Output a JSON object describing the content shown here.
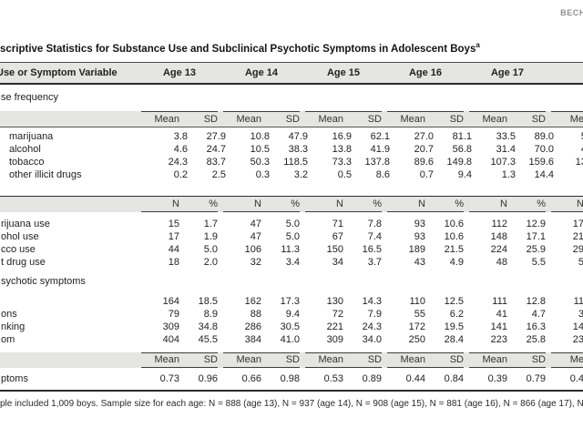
{
  "running_head": "BECH",
  "title": {
    "text": "scriptive Statistics for Substance Use and Subclinical Psychotic Symptoms in Adolescent Boys",
    "superscript": "a"
  },
  "header": {
    "stub": "Use or Symptom Variable",
    "ages": [
      "Age 13",
      "Age 14",
      "Age 15",
      "Age 16",
      "Age 17"
    ]
  },
  "rows": [
    {
      "type": "section",
      "label": "se frequency",
      "cls": ""
    },
    {
      "type": "band",
      "label": "",
      "cls": "seg-top line-bottom",
      "values": [
        "Mean",
        "SD",
        "Mean",
        "SD",
        "Mean",
        "SD",
        "Mean",
        "SD",
        "Mean",
        "SD"
      ],
      "partial": "Me"
    },
    {
      "type": "data",
      "label": "marijuana",
      "cls": "mt3 ind10",
      "values": [
        "3.8",
        "27.9",
        "10.8",
        "47.9",
        "16.9",
        "62.1",
        "27.0",
        "81.1",
        "33.5",
        "89.0"
      ],
      "partial": "51"
    },
    {
      "type": "data",
      "label": "alcohol",
      "cls": "ind10",
      "values": [
        "4.6",
        "24.7",
        "10.5",
        "38.3",
        "13.8",
        "41.9",
        "20.7",
        "56.8",
        "31.4",
        "70.0"
      ],
      "partial": "49"
    },
    {
      "type": "data",
      "label": "tobacco",
      "cls": "ind10",
      "values": [
        "24.3",
        "83.7",
        "50.3",
        "118.5",
        "73.3",
        "137.8",
        "89.6",
        "149.8",
        "107.3",
        "159.6"
      ],
      "partial": "135"
    },
    {
      "type": "data",
      "label": "other illicit drugs",
      "cls": "ind10",
      "values": [
        "0.2",
        "2.5",
        "0.3",
        "3.2",
        "0.5",
        "8.6",
        "0.7",
        "9.4",
        "1.3",
        "14.4"
      ],
      "partial": "0"
    },
    {
      "type": "band",
      "label": "",
      "cls": "line-top seg-bottom mt16",
      "values": [
        "N",
        "%",
        "N",
        "%",
        "N",
        "%",
        "N",
        "%",
        "N",
        "%"
      ],
      "partial": "N"
    },
    {
      "type": "data",
      "label": "rijuana use",
      "cls": "mt6",
      "values": [
        "15",
        "1.7",
        "47",
        "5.0",
        "71",
        "7.8",
        "93",
        "10.6",
        "112",
        "12.9"
      ],
      "partial": "17"
    },
    {
      "type": "data",
      "label": "ohol use",
      "cls": "",
      "values": [
        "17",
        "1.9",
        "47",
        "5.0",
        "67",
        "7.4",
        "93",
        "10.6",
        "148",
        "17.1"
      ],
      "partial": "21"
    },
    {
      "type": "data",
      "label": "cco use",
      "cls": "",
      "values": [
        "44",
        "5.0",
        "106",
        "11.3",
        "150",
        "16.5",
        "189",
        "21.5",
        "224",
        "25.9"
      ],
      "partial": "29"
    },
    {
      "type": "data",
      "label": "t drug use",
      "cls": "",
      "values": [
        "18",
        "2.0",
        "32",
        "3.4",
        "34",
        "3.7",
        "43",
        "4.9",
        "48",
        "5.5"
      ],
      "partial": "5"
    },
    {
      "type": "section",
      "label": "sychotic symptoms",
      "cls": ""
    },
    {
      "type": "data",
      "label": "",
      "cls": "",
      "values": [
        "164",
        "18.5",
        "162",
        "17.3",
        "130",
        "14.3",
        "110",
        "12.5",
        "111",
        "12.8"
      ],
      "partial": "11"
    },
    {
      "type": "data",
      "label": "ons",
      "cls": "",
      "values": [
        "79",
        "8.9",
        "88",
        "9.4",
        "72",
        "7.9",
        "55",
        "6.2",
        "41",
        "4.7"
      ],
      "partial": "3"
    },
    {
      "type": "data",
      "label": "nking",
      "cls": "",
      "values": [
        "309",
        "34.8",
        "286",
        "30.5",
        "221",
        "24.3",
        "172",
        "19.5",
        "141",
        "16.3"
      ],
      "partial": "14"
    },
    {
      "type": "data",
      "label": "om",
      "cls": "",
      "values": [
        "404",
        "45.5",
        "384",
        "41.0",
        "309",
        "34.0",
        "250",
        "28.4",
        "223",
        "25.8"
      ],
      "partial": "23"
    },
    {
      "type": "band",
      "label": "",
      "cls": "seg-top seg-bottom mt7",
      "values": [
        "Mean",
        "SD",
        "Mean",
        "SD",
        "Mean",
        "SD",
        "Mean",
        "SD",
        "Mean",
        "SD"
      ],
      "partial": "Me"
    },
    {
      "type": "data",
      "label": "ptoms",
      "cls": "last",
      "values": [
        "0.73",
        "0.96",
        "0.66",
        "0.98",
        "0.53",
        "0.89",
        "0.44",
        "0.84",
        "0.39",
        "0.79"
      ],
      "partial": "0.4"
    }
  ],
  "footnote": "ple included 1,009 boys. Sample size for each age: N = 888 (age 13), N = 937 (age 14), N = 908 (age 15), N = 881 (age 16), N = 866 (age 17), N =",
  "colors": {
    "band_background": "#e5e5e3",
    "rule_dark": "#2b2b2b",
    "running_head_gray": "#8f8f8f"
  }
}
